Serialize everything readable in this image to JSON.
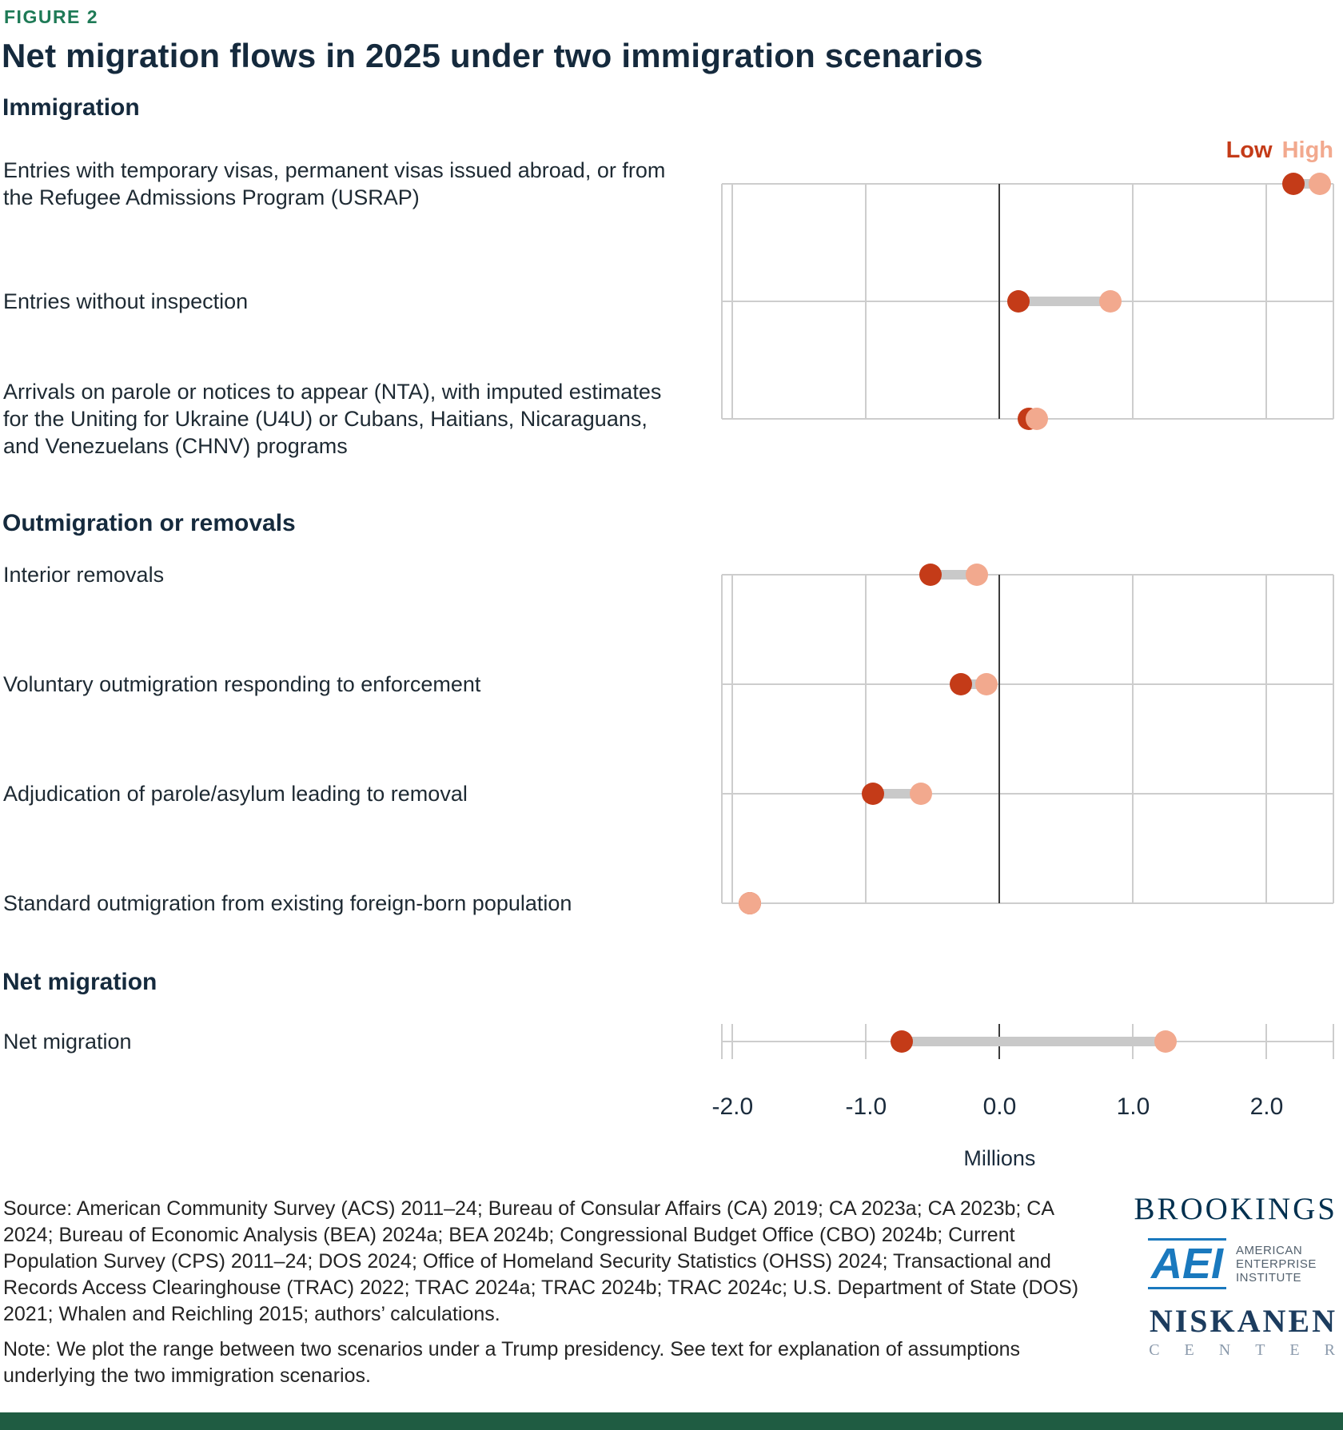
{
  "header": {
    "figure_label": "FIGURE 2",
    "title": "Net migration flows in 2025 under two immigration scenarios"
  },
  "colors": {
    "low": "#C43B18",
    "high": "#F2A98E",
    "connector": "#C9C9C9",
    "grid": "#CDCDCD",
    "zero_line": "#3C3C3C",
    "figure_label": "#1E7A56",
    "bottom_bar": "#1F5C42"
  },
  "chart_data": {
    "type": "dumbbell",
    "unit_label": "Millions",
    "xlim": [
      -2.08,
      2.5
    ],
    "tick_values": [
      -2,
      -1,
      0,
      1,
      2
    ],
    "tick_labels": [
      "-2.0",
      "-1.0",
      "0.0",
      "1.0",
      "2.0"
    ],
    "legend": {
      "low": "Low",
      "high": "High"
    },
    "sections": [
      {
        "heading": "Immigration",
        "rows": [
          {
            "label": "Entries with temporary visas, permanent visas issued abroad, or from the Refugee Admissions Program (USRAP)",
            "low": 2.2,
            "high": 2.4
          },
          {
            "label": "Entries without inspection",
            "low": 0.14,
            "high": 0.83
          },
          {
            "label": "Arrivals on parole or notices to appear (NTA), with imputed estimates for the Uniting for Ukraine (U4U) or Cubans, Haitians, Nicaraguans, and Venezuelans (CHNV) programs",
            "low": 0.22,
            "high": 0.28
          }
        ]
      },
      {
        "heading": "Outmigration or removals",
        "rows": [
          {
            "label": "Interior removals",
            "low": -0.52,
            "high": -0.17
          },
          {
            "label": "Voluntary outmigration responding to enforcement",
            "low": -0.29,
            "high": -0.1
          },
          {
            "label": "Adjudication of parole/asylum leading to removal",
            "low": -0.95,
            "high": -0.59
          },
          {
            "label": "Standard outmigration from existing foreign-born population",
            "low": -1.87,
            "high": -1.87
          }
        ]
      },
      {
        "heading": "Net migration",
        "rows": [
          {
            "label": "Net migration",
            "low": -0.73,
            "high": 1.24
          }
        ]
      }
    ]
  },
  "footer": {
    "source": "Source: American Community Survey (ACS) 2011–24; Bureau of Consular Affairs (CA) 2019; CA 2023a; CA 2023b; CA 2024; Bureau of Economic Analysis (BEA) 2024a; BEA 2024b; Congressional Budget Office (CBO) 2024b; Current Population Survey (CPS) 2011–24; DOS 2024; Office of Homeland Security Statistics (OHSS) 2024; Transactional and Records Access Clearinghouse (TRAC) 2022; TRAC 2024a; TRAC 2024b; TRAC 2024c; U.S. Department of State (DOS) 2021; Whalen and Reichling 2015; authors’ calculations.",
    "note": "Note: We plot the range between two scenarios under a Trump presidency. See text for explanation of assumptions underlying the two immigration scenarios.",
    "logos": {
      "brookings": "BROOKINGS",
      "aei_mark": "AEI",
      "aei_text": "AMERICAN ENTERPRISE INSTITUTE",
      "niskanen": "NISKANEN",
      "niskanen_sub": "CENTER"
    }
  }
}
